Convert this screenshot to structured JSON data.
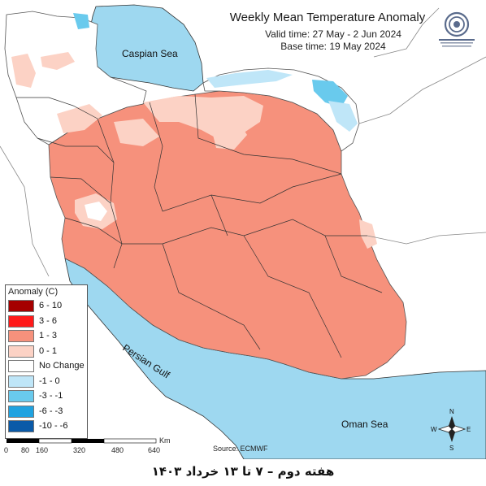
{
  "title": "Weekly Mean Temperature Anomaly",
  "valid_time": "Valid time: 27 May - 2 Jun 2024",
  "base_time": "Base time: 19 May 2024",
  "labels": {
    "caspian": "Caspian Sea",
    "gulf": "Persian Gulf",
    "oman": "Oman Sea"
  },
  "legend": {
    "title": "Anomaly (C)",
    "items": [
      {
        "label": "6 - 10",
        "color": "#a50000"
      },
      {
        "label": "3 - 6",
        "color": "#ff1a1a"
      },
      {
        "label": "1 - 3",
        "color": "#f6917c"
      },
      {
        "label": "0 - 1",
        "color": "#fcd2c5"
      },
      {
        "label": "No Change",
        "color": "#ffffff"
      },
      {
        "label": "-1 - 0",
        "color": "#bfe6f8"
      },
      {
        "label": "-3 - -1",
        "color": "#69caed"
      },
      {
        "label": "-6 - -3",
        "color": "#1fa2e0"
      },
      {
        "label": "-10 - -6",
        "color": "#0a5aa8"
      }
    ]
  },
  "scale": {
    "unit": "Km",
    "ticks": [
      "0",
      "80",
      "160",
      "320",
      "480",
      "640"
    ]
  },
  "source": "Source: ECMWF",
  "compass": {
    "n": "N",
    "s": "S",
    "e": "E",
    "w": "W"
  },
  "footer": "هفته دوم – ۷ تا ۱۳ خرداد ۱۴۰۳",
  "colors": {
    "sea": "#9ed8f0",
    "warm": "#f6917c",
    "light_warm": "#fcd2c5",
    "cool_light": "#bfe6f8",
    "cool": "#69caed"
  }
}
